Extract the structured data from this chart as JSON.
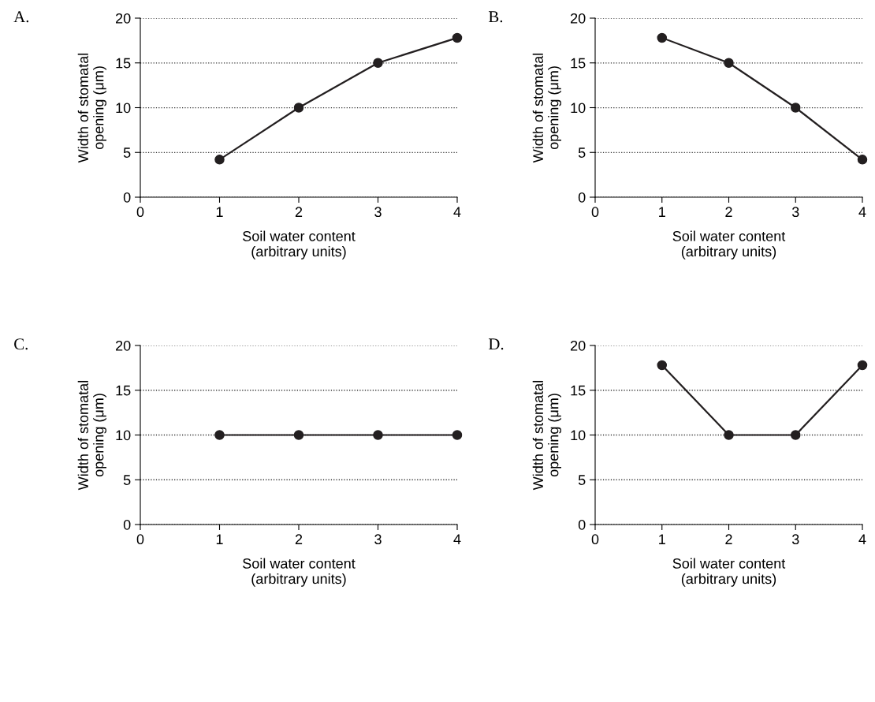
{
  "chart_data": [
    {
      "type": "line",
      "title": "A.",
      "x": [
        1,
        2,
        3,
        4
      ],
      "values": [
        4.2,
        10,
        15,
        17.8
      ],
      "color": "#231f20",
      "xlim": [
        0,
        4
      ],
      "ylim": [
        0,
        20
      ],
      "xticks": [
        0,
        1,
        2,
        3,
        4
      ],
      "yticks": [
        0,
        5,
        10,
        15,
        20
      ],
      "xlabel": "Soil water content\n(arbitrary units)",
      "ylabel": "Width of stomatal\nopening (μm)",
      "grid": "y",
      "marker": "circle",
      "line_style": "solid"
    },
    {
      "type": "line",
      "title": "B.",
      "x": [
        1,
        2,
        3,
        4
      ],
      "values": [
        17.8,
        15,
        10,
        4.2
      ],
      "color": "#231f20",
      "xlim": [
        0,
        4
      ],
      "ylim": [
        0,
        20
      ],
      "xticks": [
        0,
        1,
        2,
        3,
        4
      ],
      "yticks": [
        0,
        5,
        10,
        15,
        20
      ],
      "xlabel": "Soil water content\n(arbitrary units)",
      "ylabel": "Width of stomatal\nopening (μm)",
      "grid": "y",
      "marker": "circle",
      "line_style": "solid"
    },
    {
      "type": "line",
      "title": "C.",
      "x": [
        1,
        2,
        3,
        4
      ],
      "values": [
        10,
        10,
        10,
        10
      ],
      "color": "#231f20",
      "xlim": [
        0,
        4
      ],
      "ylim": [
        0,
        20
      ],
      "xticks": [
        0,
        1,
        2,
        3,
        4
      ],
      "yticks": [
        0,
        5,
        10,
        15,
        20
      ],
      "xlabel": "Soil water content\n(arbitrary units)",
      "ylabel": "Width of stomatal\nopening (μm)",
      "grid": "y",
      "marker": "circle",
      "line_style": "solid"
    },
    {
      "type": "line",
      "title": "D.",
      "x": [
        1,
        2,
        3,
        4
      ],
      "values": [
        17.8,
        10,
        10,
        17.8
      ],
      "color": "#231f20",
      "xlim": [
        0,
        4
      ],
      "ylim": [
        0,
        20
      ],
      "xticks": [
        0,
        1,
        2,
        3,
        4
      ],
      "yticks": [
        0,
        5,
        10,
        15,
        20
      ],
      "xlabel": "Soil water content\n(arbitrary units)",
      "ylabel": "Width of stomatal\nopening (μm)",
      "grid": "y",
      "marker": "circle",
      "line_style": "solid"
    }
  ]
}
